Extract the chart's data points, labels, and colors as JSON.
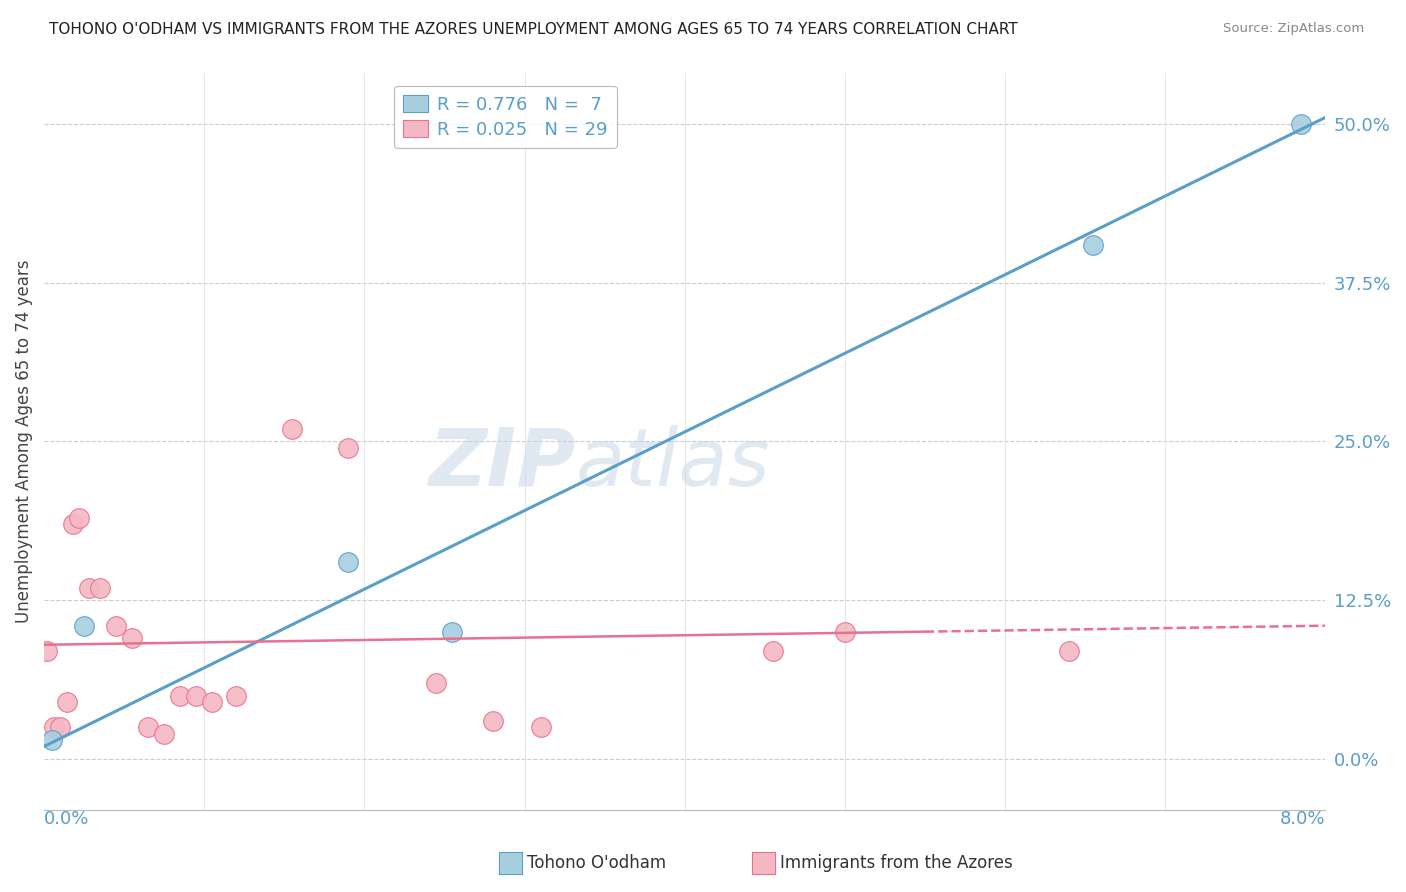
{
  "title": "TOHONO O'ODHAM VS IMMIGRANTS FROM THE AZORES UNEMPLOYMENT AMONG AGES 65 TO 74 YEARS CORRELATION CHART",
  "source": "Source: ZipAtlas.com",
  "ylabel": "Unemployment Among Ages 65 to 74 years",
  "ytick_vals": [
    0.0,
    12.5,
    25.0,
    37.5,
    50.0
  ],
  "xmin": 0.0,
  "xmax": 8.0,
  "ymin": -4.0,
  "ymax": 54.0,
  "legend1_R": "0.776",
  "legend1_N": "7",
  "legend2_R": "0.025",
  "legend2_N": "29",
  "color_blue": "#a8cfe0",
  "color_pink": "#f4b8c4",
  "color_blue_line": "#5a9ec9",
  "color_pink_line": "#e87090",
  "watermark_zip": "ZIP",
  "watermark_atlas": "atlas",
  "blue_scatter_x": [
    0.05,
    0.25,
    1.9,
    2.55,
    6.55,
    7.85
  ],
  "blue_scatter_y": [
    1.5,
    10.5,
    15.5,
    10.0,
    40.5,
    50.0
  ],
  "pink_scatter_x": [
    0.02,
    0.06,
    0.1,
    0.14,
    0.18,
    0.22,
    0.28,
    0.35,
    0.45,
    0.55,
    0.65,
    0.75,
    0.85,
    0.95,
    1.05,
    1.2,
    1.55,
    1.9,
    2.45,
    2.8,
    3.1,
    4.55,
    5.0,
    6.4
  ],
  "pink_scatter_y": [
    8.5,
    2.5,
    2.5,
    4.5,
    18.5,
    19.0,
    13.5,
    13.5,
    10.5,
    9.5,
    2.5,
    2.0,
    5.0,
    5.0,
    4.5,
    5.0,
    26.0,
    24.5,
    6.0,
    3.0,
    2.5,
    8.5,
    10.0,
    8.5
  ],
  "blue_line_x0": 0.0,
  "blue_line_y0": 1.0,
  "blue_line_x1": 8.0,
  "blue_line_y1": 50.5,
  "pink_line_x0": 0.0,
  "pink_line_y0": 9.0,
  "pink_line_x1": 8.0,
  "pink_line_y1": 10.5
}
